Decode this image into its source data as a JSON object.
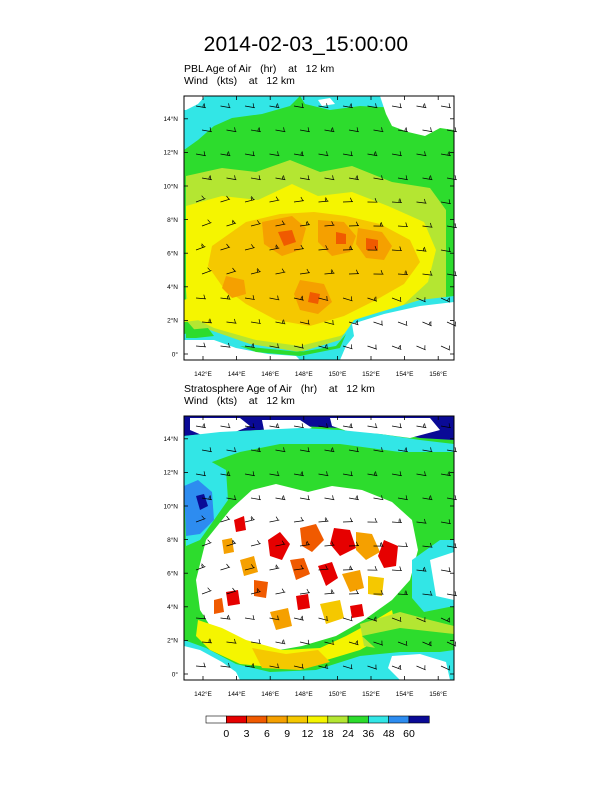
{
  "title": "2014-02-03_15:00:00",
  "panels": [
    {
      "id": "pbl",
      "field_label": "PBL Age of Air",
      "field_units": "(hr)",
      "field_level_prefix": "at",
      "field_level": "12 km",
      "wind_label": "Wind",
      "wind_units": "(kts)",
      "wind_level_prefix": "at",
      "wind_level": "12 km"
    },
    {
      "id": "strat",
      "field_label": "Stratosphere Age of Air",
      "field_units": "(hr)",
      "field_level_prefix": "at",
      "field_level": "12 km",
      "wind_label": "Wind",
      "wind_units": "(kts)",
      "wind_level_prefix": "at",
      "wind_level": "12 km"
    }
  ],
  "axes": {
    "lat_labels": [
      "0°",
      "2°N",
      "4°N",
      "6°N",
      "8°N",
      "10°N",
      "12°N",
      "14°N"
    ],
    "lon_labels": [
      "142°E",
      "144°E",
      "146°E",
      "148°E",
      "150°E",
      "152°E",
      "154°E",
      "156°E"
    ]
  },
  "colorbar": {
    "labels": [
      "0",
      "3",
      "6",
      "9",
      "12",
      "18",
      "24",
      "36",
      "48",
      "60"
    ],
    "colors": [
      "#ffffff",
      "#e60000",
      "#f05a00",
      "#f5a000",
      "#f5c800",
      "#f5f500",
      "#b4e632",
      "#2ddc2d",
      "#32e6e6",
      "#2d8cf0",
      "#0a0a96"
    ]
  },
  "map_colors": {
    "green": "#2ddc2d",
    "light_green": "#b4e632",
    "yellow": "#f5f500",
    "gold": "#f5c800",
    "orange": "#f5a000",
    "dark_orange": "#f05a00",
    "red": "#e60000",
    "cyan": "#32e6e6",
    "blue": "#2d8cf0",
    "navy": "#0a0a96",
    "white": "#ffffff"
  }
}
